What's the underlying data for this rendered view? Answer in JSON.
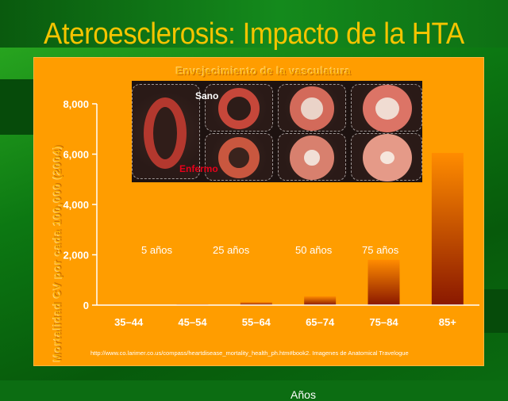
{
  "slide": {
    "title": "Ateroesclerosis: Impacto de la HTA",
    "source": "http://www.co.larimer.co.us/compass/heartdisease_mortality_health_ph.htm#book2. Imagenes de Anatomical Travelogue"
  },
  "inset": {
    "label_healthy": "Sano",
    "label_diseased": "Enfermo",
    "ages": [
      "5 años",
      "25 años",
      "50 años",
      "75 años"
    ]
  },
  "colors": {
    "panel": "#ff9d00",
    "bar_top": "#ff8a00",
    "bar_bottom": "#8a1800",
    "title_text": "#f5c400"
  },
  "chart_data": {
    "type": "bar",
    "title": "Envejecimiento de la vasculatura",
    "xlabel": "Años",
    "ylabel": "Mortalidad CV por cada 100,000 (2004)",
    "categories": [
      "35–44",
      "45–54",
      "55–64",
      "65–74",
      "75–84",
      "85+"
    ],
    "values": [
      20,
      40,
      120,
      350,
      1800,
      6050
    ],
    "ylim": [
      0,
      8000
    ],
    "yticks": [
      0,
      2000,
      4000,
      6000,
      8000
    ],
    "ytick_labels": [
      "0",
      "2,000",
      "4,000",
      "6,000",
      "8,000"
    ],
    "grid": false,
    "legend": "none"
  }
}
